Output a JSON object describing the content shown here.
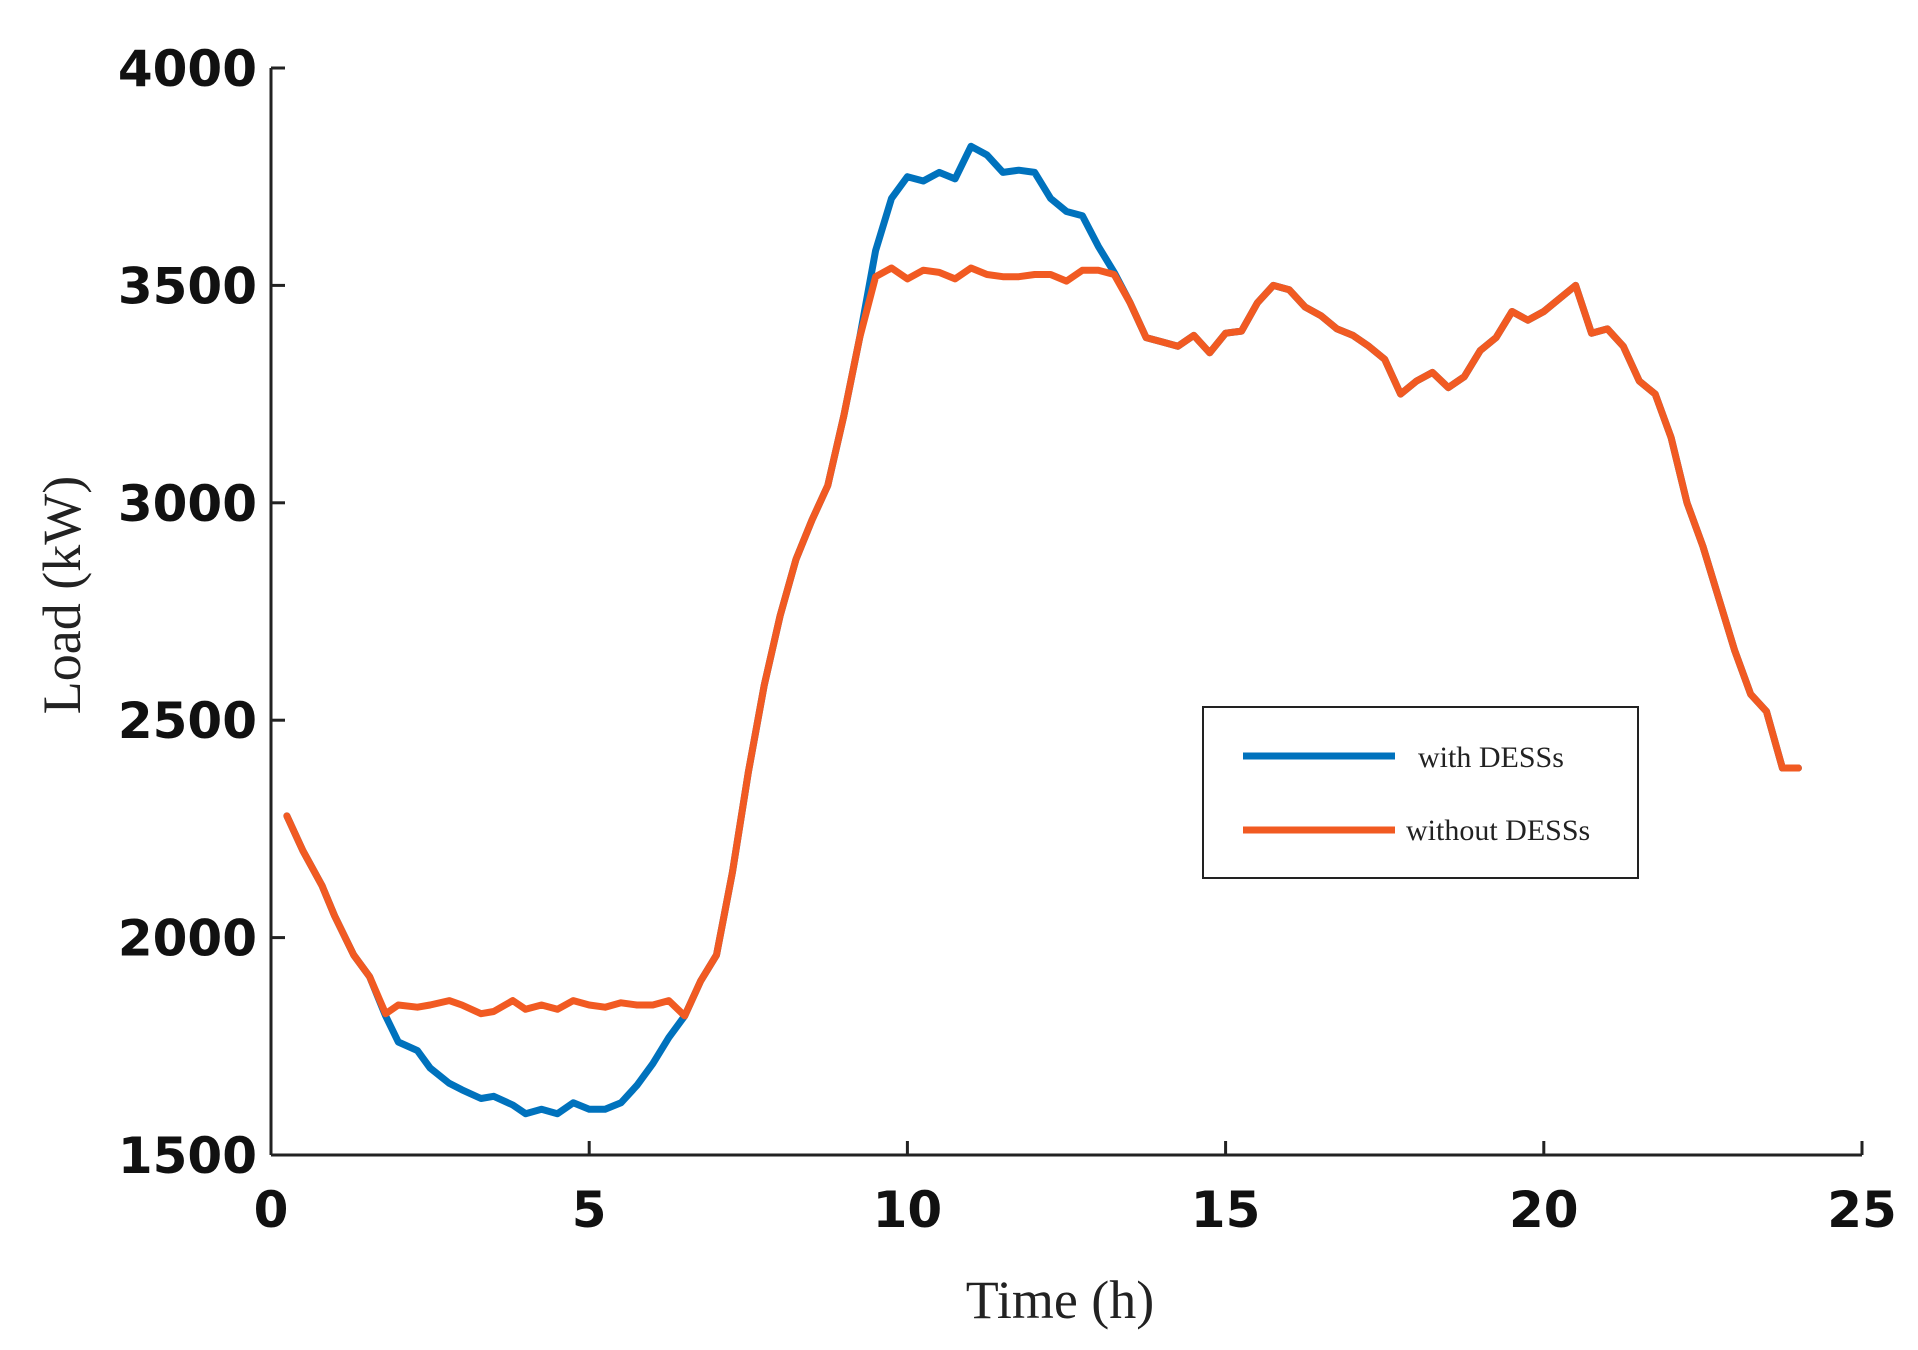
{
  "chart_data": {
    "type": "line",
    "title": "",
    "xlabel": "Time (h)",
    "ylabel": "Load (kW)",
    "xlim": [
      0,
      25
    ],
    "ylim": [
      1500,
      4000
    ],
    "xticks": [
      0,
      5,
      10,
      15,
      20,
      25
    ],
    "yticks": [
      1500,
      2000,
      2500,
      3000,
      3500,
      4000
    ],
    "xtick_labels": [
      "0",
      "5",
      "10",
      "15",
      "20",
      "25"
    ],
    "ytick_labels": [
      "1500",
      "2000",
      "2500",
      "3000",
      "3500",
      "4000"
    ],
    "grid": false,
    "legend_position": "right-center",
    "series": [
      {
        "name": "with DESSs",
        "color": "#0072bd",
        "x": [
          0.25,
          0.5,
          0.8,
          1.0,
          1.3,
          1.55,
          1.8,
          2.0,
          2.3,
          2.5,
          2.8,
          3.0,
          3.3,
          3.5,
          3.8,
          4.0,
          4.25,
          4.5,
          4.75,
          5.0,
          5.25,
          5.5,
          5.75,
          6.0,
          6.25,
          6.5,
          6.75,
          7.0,
          7.25,
          7.5,
          7.75,
          8.0,
          8.25,
          8.5,
          8.75,
          9.0,
          9.25,
          9.5,
          9.75,
          10.0,
          10.25,
          10.5,
          10.75,
          11.0,
          11.25,
          11.5,
          11.75,
          12.0,
          12.25,
          12.5,
          12.75,
          13.0,
          13.25,
          13.5,
          13.75,
          14.0,
          14.25,
          14.5,
          14.75,
          15.0,
          15.25,
          15.5,
          15.75,
          16.0,
          16.25,
          16.5,
          16.75,
          17.0,
          17.25,
          17.5,
          17.75,
          18.0,
          18.25,
          18.5,
          18.75,
          19.0,
          19.25,
          19.5,
          19.75,
          20.0,
          20.25,
          20.5,
          20.75,
          21.0,
          21.25,
          21.5,
          21.75,
          22.0,
          22.25,
          22.5,
          22.75,
          23.0,
          23.25,
          23.5,
          23.75,
          24.0
        ],
        "y": [
          2280,
          2200,
          2120,
          2050,
          1960,
          1910,
          1820,
          1760,
          1740,
          1700,
          1665,
          1650,
          1630,
          1635,
          1615,
          1595,
          1605,
          1595,
          1620,
          1605,
          1605,
          1620,
          1660,
          1710,
          1770,
          1820,
          1900,
          1960,
          2150,
          2380,
          2580,
          2740,
          2870,
          2960,
          3040,
          3200,
          3380,
          3580,
          3700,
          3750,
          3740,
          3760,
          3745,
          3820,
          3800,
          3760,
          3765,
          3760,
          3700,
          3670,
          3660,
          3590,
          3530,
          3460,
          3380,
          3370,
          3360,
          3385,
          3345,
          3390,
          3395,
          3460,
          3500,
          3490,
          3450,
          3430,
          3400,
          3385,
          3360,
          3330,
          3250,
          3280,
          3300,
          3265,
          3290,
          3350,
          3380,
          3440,
          3420,
          3440,
          3470,
          3500,
          3390,
          3400,
          3360,
          3280,
          3250,
          3150,
          3000,
          2900,
          2780,
          2660,
          2560,
          2520,
          2390,
          2390
        ]
      },
      {
        "name": "without DESSs",
        "color": "#f15a22",
        "x": [
          0.25,
          0.5,
          0.8,
          1.0,
          1.3,
          1.55,
          1.8,
          2.0,
          2.3,
          2.5,
          2.8,
          3.0,
          3.3,
          3.5,
          3.8,
          4.0,
          4.25,
          4.5,
          4.75,
          5.0,
          5.25,
          5.5,
          5.75,
          6.0,
          6.25,
          6.5,
          6.75,
          7.0,
          7.25,
          7.5,
          7.75,
          8.0,
          8.25,
          8.5,
          8.75,
          9.0,
          9.25,
          9.5,
          9.75,
          10.0,
          10.25,
          10.5,
          10.75,
          11.0,
          11.25,
          11.5,
          11.75,
          12.0,
          12.25,
          12.5,
          12.75,
          13.0,
          13.25,
          13.5,
          13.75,
          14.0,
          14.25,
          14.5,
          14.75,
          15.0,
          15.25,
          15.5,
          15.75,
          16.0,
          16.25,
          16.5,
          16.75,
          17.0,
          17.25,
          17.5,
          17.75,
          18.0,
          18.25,
          18.5,
          18.75,
          19.0,
          19.25,
          19.5,
          19.75,
          20.0,
          20.25,
          20.5,
          20.75,
          21.0,
          21.25,
          21.5,
          21.75,
          22.0,
          22.25,
          22.5,
          22.75,
          23.0,
          23.25,
          23.5,
          23.75,
          24.0
        ],
        "y": [
          2280,
          2200,
          2120,
          2050,
          1960,
          1910,
          1825,
          1845,
          1840,
          1845,
          1855,
          1845,
          1825,
          1830,
          1855,
          1835,
          1845,
          1835,
          1855,
          1845,
          1840,
          1850,
          1845,
          1845,
          1855,
          1820,
          1900,
          1960,
          2150,
          2380,
          2580,
          2740,
          2870,
          2960,
          3040,
          3200,
          3380,
          3520,
          3540,
          3515,
          3535,
          3530,
          3515,
          3540,
          3525,
          3520,
          3520,
          3525,
          3525,
          3510,
          3535,
          3535,
          3525,
          3460,
          3380,
          3370,
          3360,
          3385,
          3345,
          3390,
          3395,
          3460,
          3500,
          3490,
          3450,
          3430,
          3400,
          3385,
          3360,
          3330,
          3250,
          3280,
          3300,
          3265,
          3290,
          3350,
          3380,
          3440,
          3420,
          3440,
          3470,
          3500,
          3390,
          3400,
          3360,
          3280,
          3250,
          3150,
          3000,
          2900,
          2780,
          2660,
          2560,
          2520,
          2390,
          2390
        ]
      }
    ]
  }
}
